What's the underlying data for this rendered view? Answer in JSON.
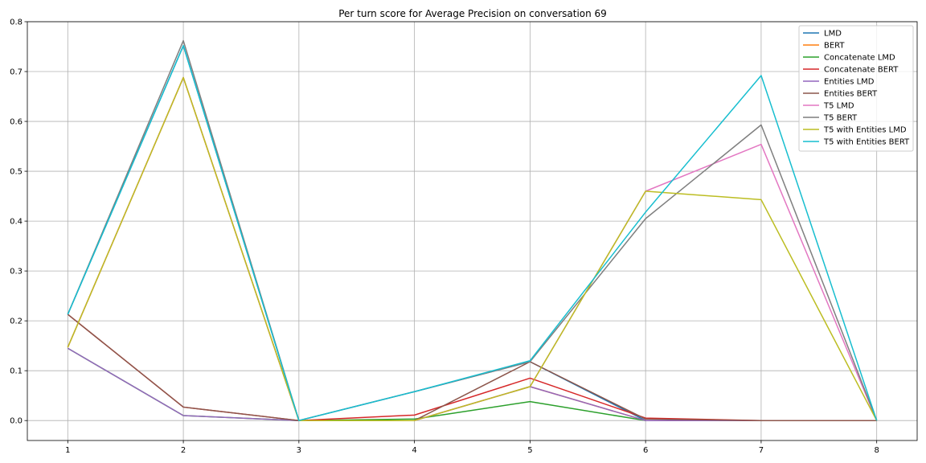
{
  "chart_data": {
    "type": "line",
    "title": "Per turn score for Average Precision on conversation 69",
    "xlabel": "",
    "ylabel": "",
    "x": [
      1,
      2,
      3,
      4,
      5,
      6,
      7,
      8
    ],
    "xlim": [
      0.65,
      8.35
    ],
    "ylim": [
      -0.04,
      0.8
    ],
    "xticks": [
      "1",
      "2",
      "3",
      "4",
      "5",
      "6",
      "7",
      "8"
    ],
    "yticks": [
      "0.0",
      "0.1",
      "0.2",
      "0.3",
      "0.4",
      "0.5",
      "0.6",
      "0.7",
      "0.8"
    ],
    "grid": true,
    "legend_position": "top-right",
    "series": [
      {
        "name": "LMD",
        "color": "#1f77b4",
        "values": [
          0.213,
          0.752,
          0.0,
          0.058,
          0.118,
          0.0,
          0.0,
          0.0
        ]
      },
      {
        "name": "BERT",
        "color": "#ff7f0e",
        "values": [
          0.147,
          0.688,
          0.0,
          0.0,
          0.068,
          0.0,
          0.0,
          0.0
        ]
      },
      {
        "name": "Concatenate LMD",
        "color": "#2ca02c",
        "values": [
          0.145,
          0.01,
          0.0,
          0.003,
          0.038,
          0.0,
          0.0,
          0.0
        ]
      },
      {
        "name": "Concatenate BERT",
        "color": "#d62728",
        "values": [
          0.213,
          0.027,
          0.0,
          0.011,
          0.085,
          0.005,
          0.0,
          0.0
        ]
      },
      {
        "name": "Entities LMD",
        "color": "#9467bd",
        "values": [
          0.145,
          0.01,
          0.0,
          0.0,
          0.068,
          0.0,
          0.0,
          0.0
        ]
      },
      {
        "name": "Entities BERT",
        "color": "#8c564b",
        "values": [
          0.213,
          0.027,
          0.0,
          0.0,
          0.118,
          0.003,
          0.0,
          0.0
        ]
      },
      {
        "name": "T5 LMD",
        "color": "#e377c2",
        "values": [
          0.147,
          0.688,
          0.0,
          0.0,
          0.068,
          0.46,
          0.554,
          0.0
        ]
      },
      {
        "name": "T5 BERT",
        "color": "#7f7f7f",
        "values": [
          0.213,
          0.762,
          0.0,
          0.058,
          0.118,
          0.405,
          0.593,
          0.0
        ]
      },
      {
        "name": "T5 with Entities LMD",
        "color": "#bcbd22",
        "values": [
          0.147,
          0.688,
          0.0,
          0.0,
          0.068,
          0.46,
          0.443,
          0.0
        ]
      },
      {
        "name": "T5 with Entities BERT",
        "color": "#17becf",
        "values": [
          0.213,
          0.752,
          0.0,
          0.058,
          0.12,
          0.418,
          0.692,
          0.0
        ]
      }
    ]
  }
}
